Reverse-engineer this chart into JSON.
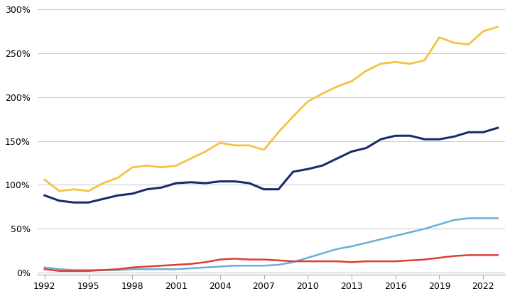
{
  "years": [
    1992,
    1993,
    1994,
    1995,
    1996,
    1997,
    1998,
    1999,
    2000,
    2001,
    2002,
    2003,
    2004,
    2005,
    2006,
    2007,
    2008,
    2009,
    2010,
    2011,
    2012,
    2013,
    2014,
    2015,
    2016,
    2017,
    2018,
    2019,
    2020,
    2021,
    2022,
    2023
  ],
  "gold": [
    1.06,
    0.93,
    0.95,
    0.93,
    1.02,
    1.08,
    1.2,
    1.22,
    1.2,
    1.22,
    1.3,
    1.38,
    1.48,
    1.45,
    1.45,
    1.4,
    1.6,
    1.78,
    1.95,
    2.04,
    2.12,
    2.18,
    2.3,
    2.38,
    2.4,
    2.38,
    2.42,
    2.68,
    2.62,
    2.6,
    2.75,
    2.8
  ],
  "dark_navy": [
    0.88,
    0.82,
    0.8,
    0.8,
    0.84,
    0.88,
    0.9,
    0.95,
    0.97,
    1.02,
    1.03,
    1.02,
    1.04,
    1.04,
    1.02,
    0.95,
    0.95,
    1.15,
    1.18,
    1.22,
    1.3,
    1.38,
    1.42,
    1.52,
    1.56,
    1.56,
    1.52,
    1.52,
    1.55,
    1.6,
    1.6,
    1.65
  ],
  "light_blue": [
    0.06,
    0.04,
    0.03,
    0.03,
    0.03,
    0.03,
    0.04,
    0.04,
    0.04,
    0.04,
    0.05,
    0.06,
    0.07,
    0.08,
    0.08,
    0.08,
    0.09,
    0.12,
    0.17,
    0.22,
    0.27,
    0.3,
    0.34,
    0.38,
    0.42,
    0.46,
    0.5,
    0.55,
    0.6,
    0.62,
    0.62,
    0.62
  ],
  "red": [
    0.04,
    0.02,
    0.02,
    0.02,
    0.03,
    0.04,
    0.06,
    0.07,
    0.08,
    0.09,
    0.1,
    0.12,
    0.15,
    0.16,
    0.15,
    0.15,
    0.14,
    0.13,
    0.13,
    0.13,
    0.13,
    0.12,
    0.13,
    0.13,
    0.13,
    0.14,
    0.15,
    0.17,
    0.19,
    0.2,
    0.2,
    0.2
  ],
  "gold_color": "#F5C242",
  "navy_color": "#1B2B6B",
  "blue_color": "#6BAED6",
  "red_color": "#E03C31",
  "bg_color": "#FFFFFF",
  "yticks": [
    0,
    0.5,
    1.0,
    1.5,
    2.0,
    2.5,
    3.0
  ],
  "ylim": [
    -0.02,
    3.05
  ],
  "xlim": [
    1991.5,
    2023.5
  ],
  "xticks": [
    1992,
    1995,
    1998,
    2001,
    2004,
    2007,
    2010,
    2013,
    2016,
    2019,
    2022
  ]
}
